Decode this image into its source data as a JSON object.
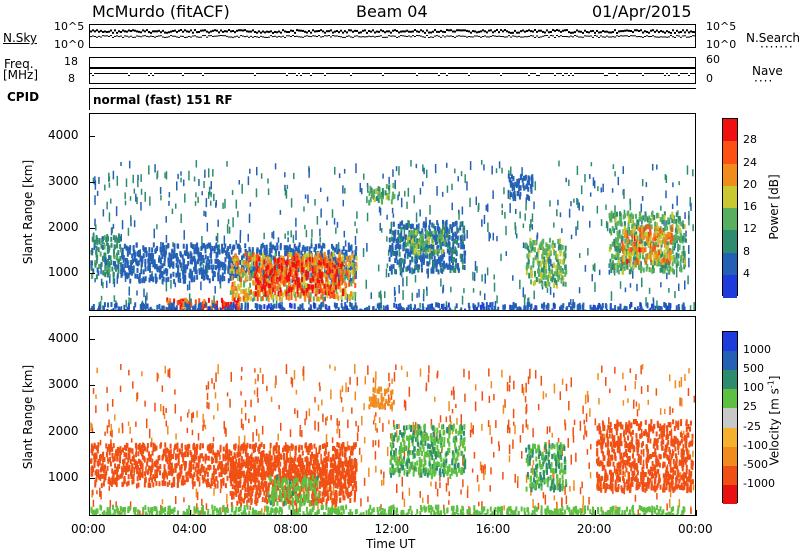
{
  "header": {
    "station": "McMurdo (fitACF)",
    "beam": "Beam 04",
    "date": "01/Apr/2015"
  },
  "top_panels": {
    "nsky_label": "N.Sky",
    "nsky_ticks": [
      "10^5",
      "10^0"
    ],
    "nsearch_label": "N.Search",
    "nsearch_ticks": [
      "10^5",
      "10^0"
    ],
    "freq_label": "Freq.",
    "freq_unit": "[MHz]",
    "freq_ticks": [
      "18",
      "8"
    ],
    "nave_label": "Nave",
    "nave_ticks": [
      "60",
      "0"
    ],
    "cpid_label": "CPID",
    "cpid_value": "normal (fast) 151 RF"
  },
  "chart_data": [
    {
      "type": "heatmap",
      "name": "power",
      "ylabel": "Slant Range [km]",
      "ylim": [
        180,
        4500
      ],
      "yticks": [
        1000,
        2000,
        3000,
        4000
      ],
      "colorbar_label": "Power [dB]",
      "colorbar_ticks": [
        4,
        8,
        12,
        16,
        20,
        24,
        28
      ],
      "colorbar_range": [
        0,
        32
      ],
      "colors": [
        "#1e3cdc",
        "#2460b4",
        "#2e8c6e",
        "#56b060",
        "#c8c832",
        "#f08c1e",
        "#ff5014",
        "#f01010"
      ],
      "regions": [
        {
          "t0": 0.0,
          "t1": 1.2,
          "r0": 1000,
          "r1": 1900,
          "level": 10
        },
        {
          "t0": 1.2,
          "t1": 10.5,
          "r0": 900,
          "r1": 1700,
          "level": 6
        },
        {
          "t0": 5.5,
          "t1": 10.5,
          "r0": 500,
          "r1": 1500,
          "level": 20
        },
        {
          "t0": 6.5,
          "t1": 10.0,
          "r0": 600,
          "r1": 1400,
          "level": 29
        },
        {
          "t0": 3.0,
          "t1": 6.0,
          "r0": 200,
          "r1": 500,
          "level": 28
        },
        {
          "t0": 0.0,
          "t1": 23.5,
          "r0": 200,
          "r1": 400,
          "level": 5
        },
        {
          "t0": 11.8,
          "t1": 14.8,
          "r0": 1100,
          "r1": 2200,
          "level": 7
        },
        {
          "t0": 12.5,
          "t1": 14.0,
          "r0": 1500,
          "r1": 2000,
          "level": 15
        },
        {
          "t0": 11.0,
          "t1": 12.0,
          "r0": 2600,
          "r1": 3000,
          "level": 14
        },
        {
          "t0": 17.2,
          "t1": 18.8,
          "r0": 800,
          "r1": 1800,
          "level": 14
        },
        {
          "t0": 20.5,
          "t1": 23.5,
          "r0": 1100,
          "r1": 2400,
          "level": 13
        },
        {
          "t0": 21.0,
          "t1": 23.0,
          "r0": 1300,
          "r1": 2100,
          "level": 22
        },
        {
          "t0": 16.5,
          "t1": 17.5,
          "r0": 2700,
          "r1": 3200,
          "level": 6
        }
      ]
    },
    {
      "type": "heatmap",
      "name": "velocity",
      "ylabel": "Slant Range [km]",
      "ylim": [
        180,
        4500
      ],
      "yticks": [
        1000,
        2000,
        3000,
        4000
      ],
      "colorbar_label": "Velocity [m s^-1]",
      "colorbar_ticks": [
        "1000",
        "500",
        "100",
        "25",
        "-25",
        "-100",
        "-500",
        "-1000"
      ],
      "colors": [
        "#e81010",
        "#f05014",
        "#f08c1e",
        "#f5b030",
        "#c8c8c8",
        "#5cc040",
        "#2e8c6e",
        "#2460b4",
        "#1e3cdc"
      ],
      "regions": [
        {
          "t0": 0.0,
          "t1": 10.5,
          "r0": 900,
          "r1": 1800,
          "level": -150
        },
        {
          "t0": 5.5,
          "t1": 10.5,
          "r0": 500,
          "r1": 1500,
          "level": -300
        },
        {
          "t0": 7.0,
          "t1": 9.0,
          "r0": 500,
          "r1": 1100,
          "level": 80
        },
        {
          "t0": 0.0,
          "t1": 23.5,
          "r0": 200,
          "r1": 450,
          "level": 60
        },
        {
          "t0": 11.8,
          "t1": 14.8,
          "r0": 1100,
          "r1": 2200,
          "level": 90
        },
        {
          "t0": 17.2,
          "t1": 18.8,
          "r0": 800,
          "r1": 1800,
          "level": 100
        },
        {
          "t0": 20.0,
          "t1": 23.8,
          "r0": 800,
          "r1": 2300,
          "level": -200
        },
        {
          "t0": 11.0,
          "t1": 12.0,
          "r0": 2600,
          "r1": 3000,
          "level": -80
        }
      ]
    }
  ],
  "x_axis": {
    "label": "Time UT",
    "ticks": [
      "00:00",
      "04:00",
      "08:00",
      "12:00",
      "16:00",
      "20:00",
      "00:00"
    ]
  }
}
